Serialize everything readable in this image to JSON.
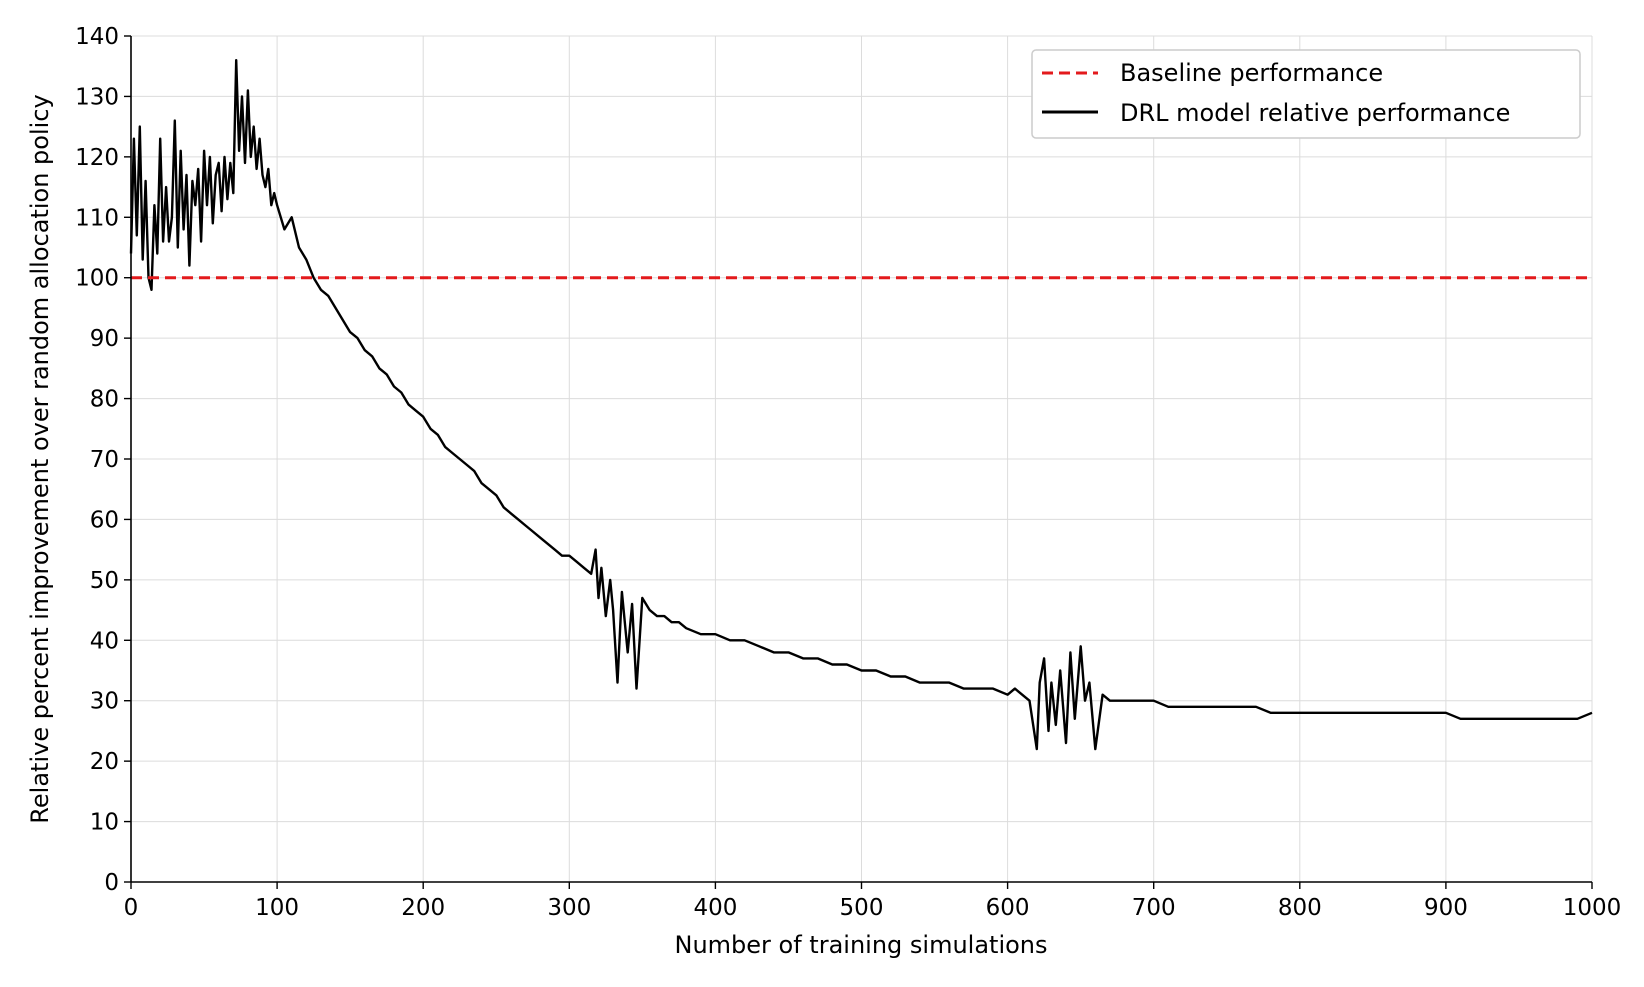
{
  "chart_data": {
    "type": "line",
    "title": "",
    "xlabel": "Number of training simulations",
    "ylabel": "Relative percent improvement over random allocation policy",
    "xlim": [
      0,
      1000
    ],
    "ylim": [
      0,
      140
    ],
    "xticks": [
      0,
      100,
      200,
      300,
      400,
      500,
      600,
      700,
      800,
      900,
      1000
    ],
    "yticks": [
      0,
      10,
      20,
      30,
      40,
      50,
      60,
      70,
      80,
      90,
      100,
      110,
      120,
      130,
      140
    ],
    "grid": true,
    "legend_position": "top-right",
    "series": [
      {
        "name": "Baseline performance",
        "style": "dashed",
        "color": "#e31a1c",
        "x": [
          0,
          1000
        ],
        "y": [
          100,
          100
        ]
      },
      {
        "name": "DRL model relative performance",
        "style": "solid",
        "color": "#000000",
        "x": [
          0,
          2,
          4,
          6,
          8,
          10,
          12,
          14,
          16,
          18,
          20,
          22,
          24,
          26,
          28,
          30,
          32,
          34,
          36,
          38,
          40,
          42,
          44,
          46,
          48,
          50,
          52,
          54,
          56,
          58,
          60,
          62,
          64,
          66,
          68,
          70,
          72,
          74,
          76,
          78,
          80,
          82,
          84,
          86,
          88,
          90,
          92,
          94,
          96,
          98,
          100,
          105,
          110,
          115,
          120,
          125,
          130,
          135,
          140,
          145,
          150,
          155,
          160,
          165,
          170,
          175,
          180,
          185,
          190,
          195,
          200,
          205,
          210,
          215,
          220,
          225,
          230,
          235,
          240,
          245,
          250,
          255,
          260,
          265,
          270,
          275,
          280,
          285,
          290,
          295,
          300,
          305,
          310,
          315,
          318,
          320,
          322,
          325,
          328,
          330,
          333,
          336,
          340,
          343,
          346,
          350,
          355,
          360,
          365,
          370,
          375,
          380,
          390,
          400,
          410,
          420,
          430,
          440,
          450,
          460,
          470,
          480,
          490,
          500,
          510,
          520,
          530,
          540,
          550,
          560,
          570,
          580,
          590,
          600,
          605,
          610,
          615,
          620,
          622,
          625,
          628,
          630,
          633,
          636,
          640,
          643,
          646,
          650,
          653,
          656,
          660,
          665,
          670,
          680,
          690,
          700,
          710,
          720,
          730,
          740,
          750,
          760,
          770,
          780,
          790,
          800,
          810,
          820,
          830,
          840,
          850,
          860,
          870,
          880,
          890,
          900,
          910,
          920,
          930,
          940,
          950,
          960,
          970,
          980,
          990,
          1000
        ],
        "y": [
          104,
          123,
          107,
          125,
          103,
          116,
          100,
          98,
          112,
          104,
          123,
          106,
          115,
          106,
          110,
          126,
          105,
          121,
          108,
          117,
          102,
          116,
          112,
          118,
          106,
          121,
          112,
          120,
          109,
          117,
          119,
          111,
          120,
          113,
          119,
          114,
          136,
          121,
          130,
          119,
          131,
          120,
          125,
          118,
          123,
          117,
          115,
          118,
          112,
          114,
          112,
          108,
          110,
          105,
          103,
          100,
          98,
          97,
          95,
          93,
          91,
          90,
          88,
          87,
          85,
          84,
          82,
          81,
          79,
          78,
          77,
          75,
          74,
          72,
          71,
          70,
          69,
          68,
          66,
          65,
          64,
          62,
          61,
          60,
          59,
          58,
          57,
          56,
          55,
          54,
          54,
          53,
          52,
          51,
          55,
          47,
          52,
          44,
          50,
          45,
          33,
          48,
          38,
          46,
          32,
          47,
          45,
          44,
          44,
          43,
          43,
          42,
          41,
          41,
          40,
          40,
          39,
          38,
          38,
          37,
          37,
          36,
          36,
          35,
          35,
          34,
          34,
          33,
          33,
          33,
          32,
          32,
          32,
          31,
          32,
          31,
          30,
          22,
          33,
          37,
          25,
          33,
          26,
          35,
          23,
          38,
          27,
          39,
          30,
          33,
          22,
          31,
          30,
          30,
          30,
          30,
          29,
          29,
          29,
          29,
          29,
          29,
          29,
          28,
          28,
          28,
          28,
          28,
          28,
          28,
          28,
          28,
          28,
          28,
          28,
          28,
          27,
          27,
          27,
          27,
          27,
          27,
          27,
          27,
          27,
          28
        ]
      }
    ]
  }
}
